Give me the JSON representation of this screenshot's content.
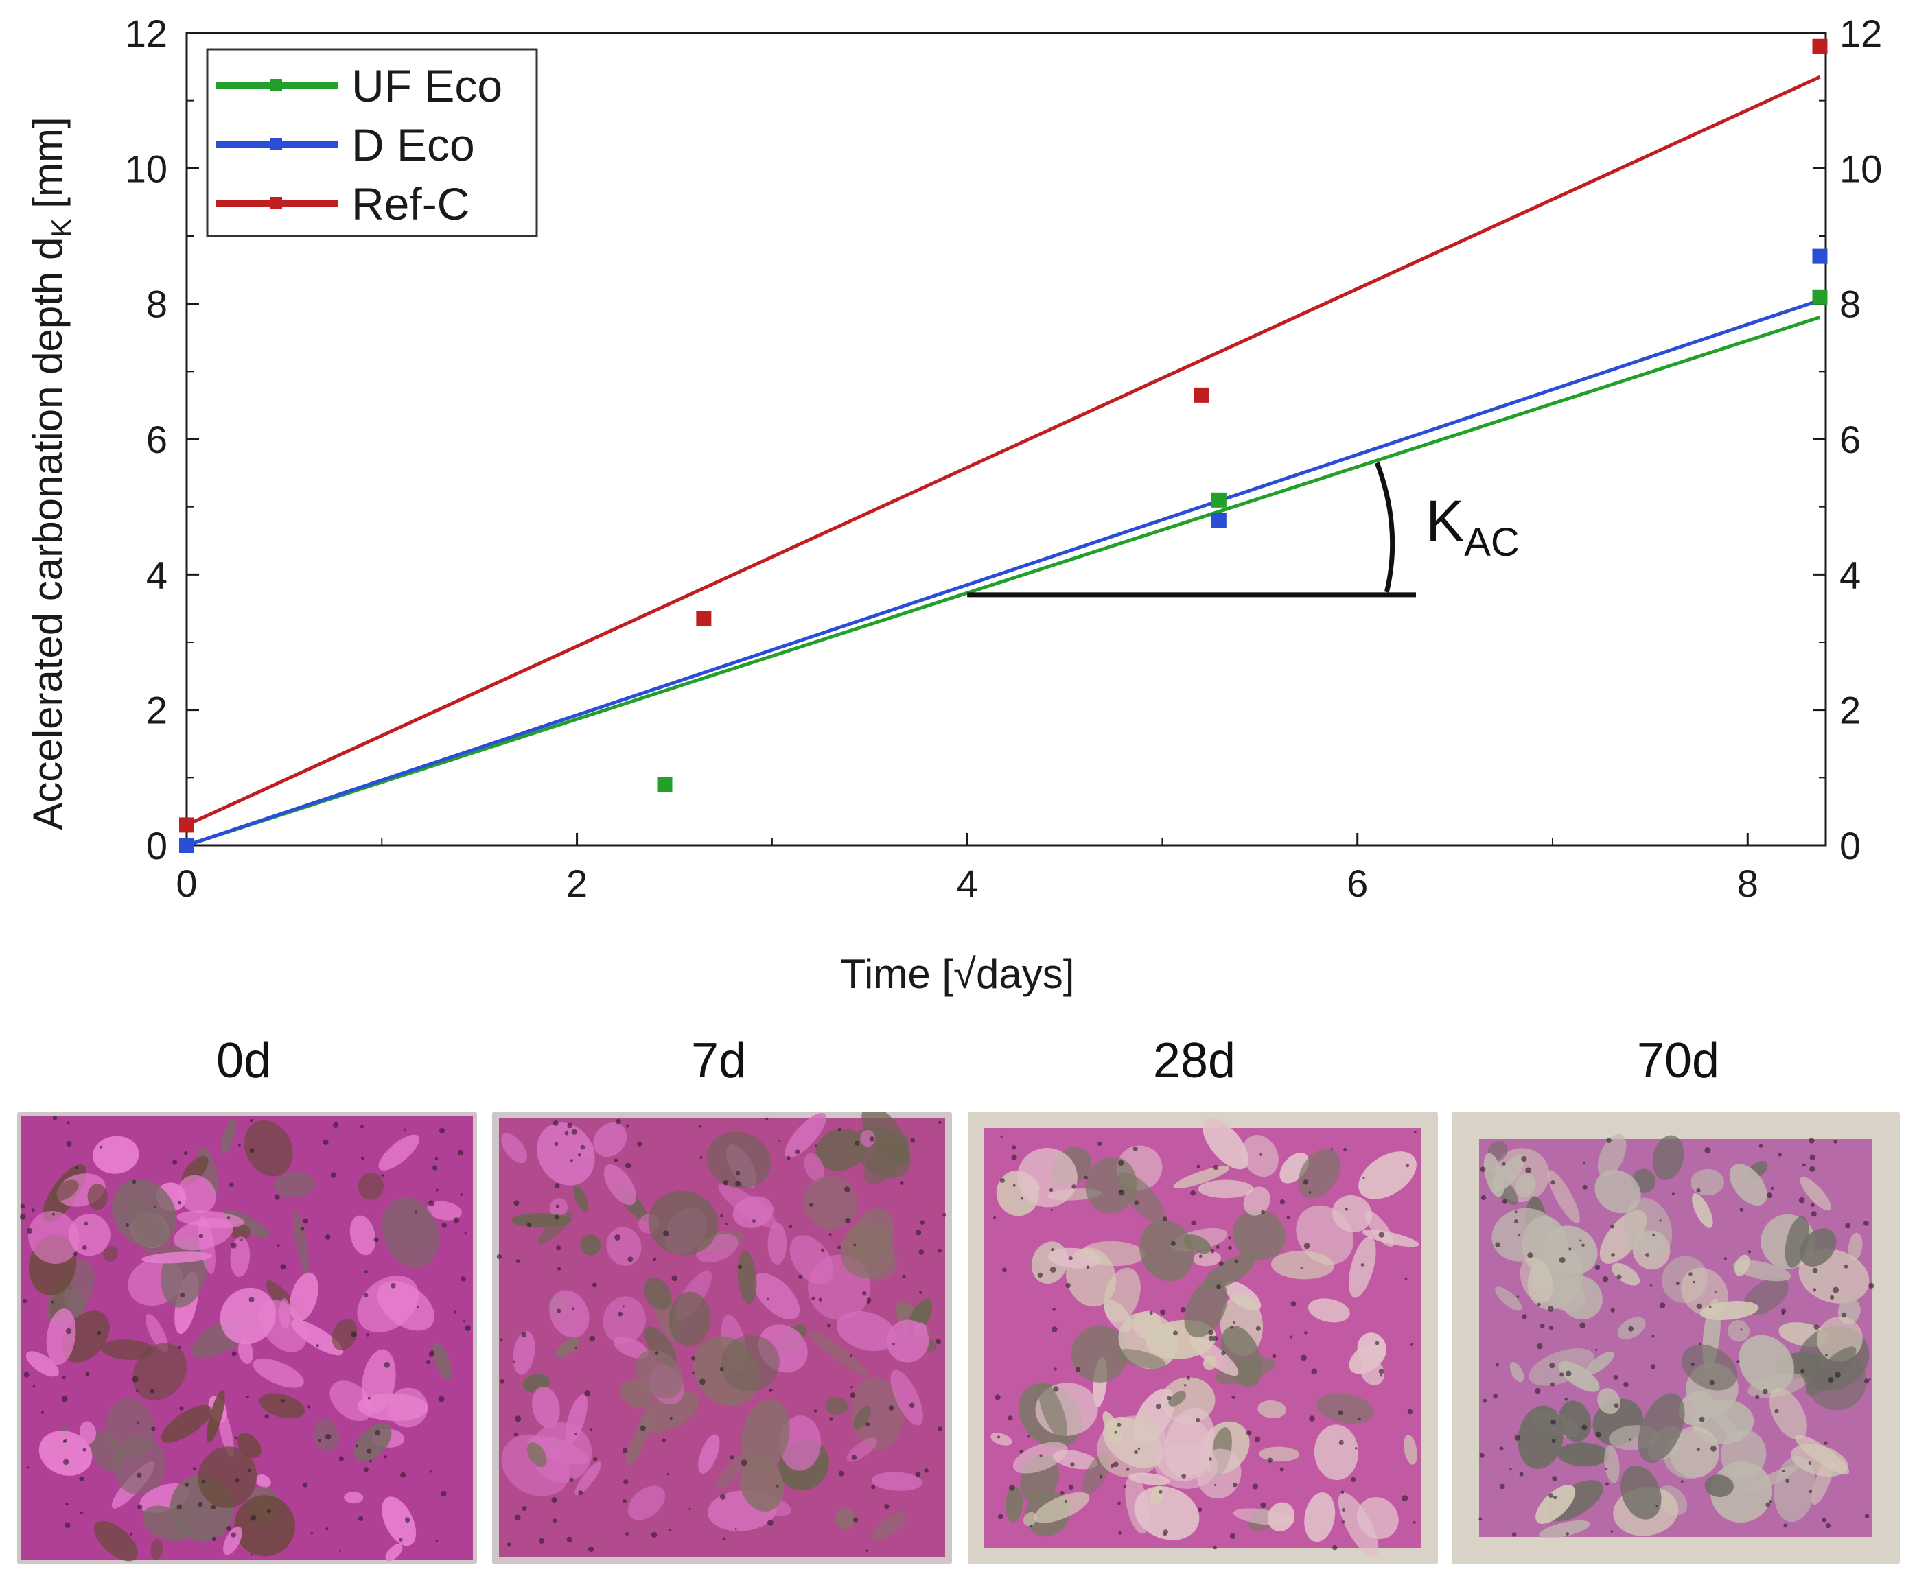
{
  "chart_data": {
    "type": "scatter",
    "ylabel": "Accelerated carbonation depth d",
    "ylabel_subscript": "K",
    "ylabel_unit": "[mm]",
    "xlabel": "Time [√days]",
    "xlim": [
      0,
      8.4
    ],
    "ylim": [
      0,
      12
    ],
    "x_ticks": [
      0,
      2,
      4,
      6,
      8
    ],
    "y_ticks": [
      0,
      2,
      4,
      6,
      8,
      10,
      12
    ],
    "secondary_y_axis": true,
    "legend_position": "top-left",
    "series": [
      {
        "name": "UF Eco",
        "color": "#22a02b",
        "points": [
          {
            "x": 0,
            "y": 0
          },
          {
            "x": 2.45,
            "y": 0.9
          },
          {
            "x": 5.29,
            "y": 5.1
          },
          {
            "x": 8.37,
            "y": 8.1
          }
        ],
        "fit": {
          "x0": 0,
          "y0": 0,
          "x1": 8.37,
          "y1": 7.8
        }
      },
      {
        "name": "D Eco",
        "color": "#2a4fd6",
        "points": [
          {
            "x": 0,
            "y": 0
          },
          {
            "x": 5.29,
            "y": 4.8
          },
          {
            "x": 8.37,
            "y": 8.7
          }
        ],
        "fit": {
          "x0": 0,
          "y0": 0,
          "x1": 8.37,
          "y1": 8.05
        }
      },
      {
        "name": "Ref-C",
        "color": "#c01f1f",
        "points": [
          {
            "x": 0,
            "y": 0.3
          },
          {
            "x": 2.65,
            "y": 3.35
          },
          {
            "x": 5.2,
            "y": 6.65
          },
          {
            "x": 8.37,
            "y": 11.8
          }
        ],
        "fit": {
          "x0": 0,
          "y0": 0.3,
          "x1": 8.37,
          "y1": 11.35
        }
      }
    ],
    "annotation": {
      "text": "K",
      "subscript": "AC",
      "description": "slope",
      "x_from": 4.0,
      "x_to": 6.3,
      "y_base": 3.7
    }
  },
  "photos": [
    {
      "label": "0d",
      "colors": {
        "base": "#b03f96",
        "stone_a": "#e77fcf",
        "stone_b": "#6a4a3a",
        "stone_c": "#7b6a66"
      }
    },
    {
      "label": "7d",
      "colors": {
        "base": "#b14b8e",
        "stone_a": "#d46fbd",
        "stone_b": "#6d6452",
        "stone_c": "#8a6f6a"
      }
    },
    {
      "label": "28d",
      "colors": {
        "base": "#c25aa3",
        "stone_a": "#e1c0c8",
        "stone_b": "#7a7765",
        "stone_c": "#d4cbb6"
      }
    },
    {
      "label": "70d",
      "colors": {
        "base": "#b66aa7",
        "stone_a": "#bdb8ad",
        "stone_b": "#6f6d65",
        "stone_c": "#d2c8b6"
      }
    }
  ]
}
